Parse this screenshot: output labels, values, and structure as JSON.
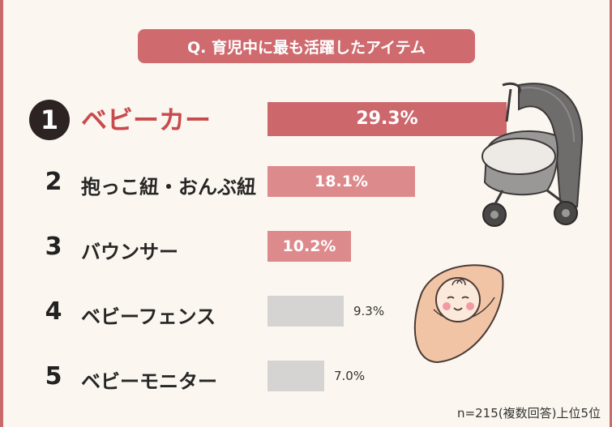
{
  "title": "Q. 育児中に最も活躍したアイテム",
  "footnote": "n=215(複数回答)上位5位",
  "colors": {
    "accent": "#cf6b6f",
    "top_bar": "#cc676b",
    "mid_bar": "#dd8a8c",
    "low_bar": "#d6d4d3",
    "top_label": "#c94a4d"
  },
  "chart_data": {
    "type": "bar",
    "orientation": "horizontal",
    "title": "Q. 育児中に最も活躍したアイテム",
    "unit": "%",
    "categories": [
      "ベビーカー",
      "抱っこ紐・おんぶ紐",
      "バウンサー",
      "ベビーフェンス",
      "ベビーモニター"
    ],
    "ranks": [
      "1",
      "2",
      "3",
      "4",
      "5"
    ],
    "values": [
      29.3,
      18.1,
      10.2,
      9.3,
      7.0
    ],
    "value_labels": [
      "29.3%",
      "18.1%",
      "10.2%",
      "9.3%",
      "7.0%"
    ],
    "xlim": [
      0,
      29.3
    ],
    "grid": false
  }
}
